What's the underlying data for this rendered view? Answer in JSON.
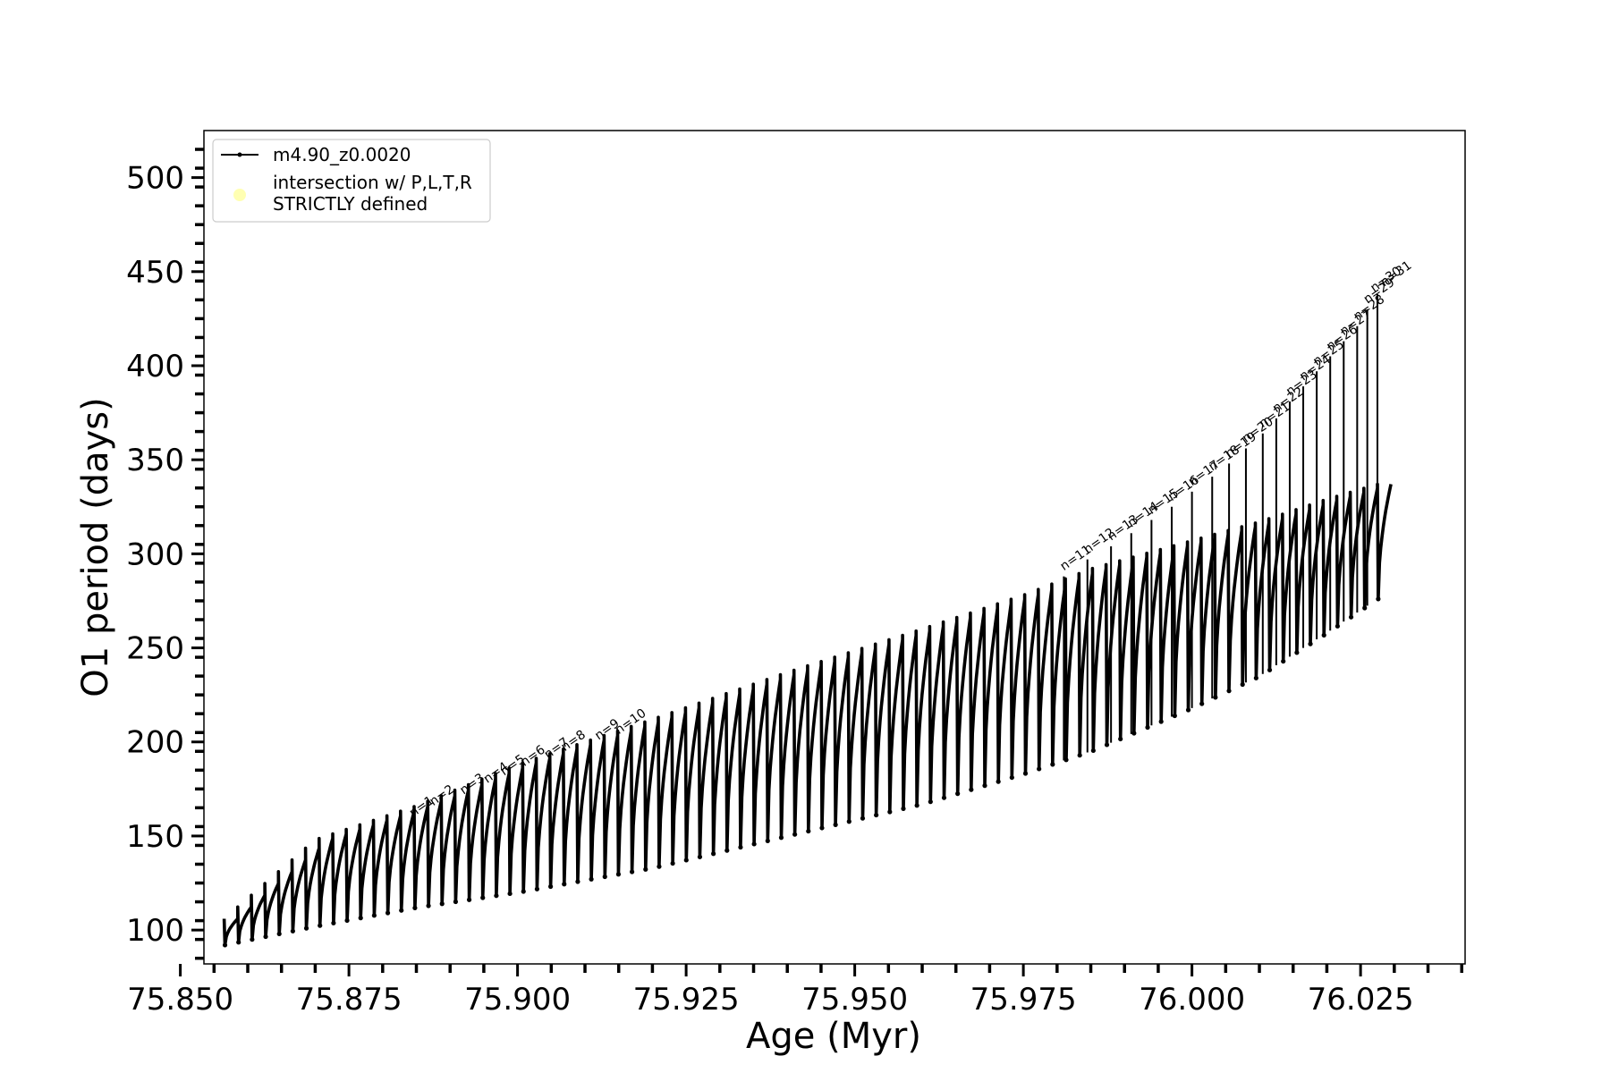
{
  "chart_data": {
    "type": "line",
    "title": "",
    "xlabel": "Age (Myr)",
    "ylabel": "O1 period (days)",
    "xlim": [
      75.8535,
      76.0405
    ],
    "ylim": [
      82,
      525
    ],
    "x_ticks": [
      75.85,
      75.875,
      75.9,
      75.925,
      75.95,
      75.975,
      76.0,
      76.025
    ],
    "x_tick_labels": [
      "75.850",
      "75.875",
      "75.900",
      "75.925",
      "75.950",
      "75.975",
      "76.000",
      "76.025"
    ],
    "y_ticks": [
      100,
      150,
      200,
      250,
      300,
      350,
      400,
      450,
      500
    ],
    "y_tick_labels": [
      "100",
      "150",
      "200",
      "250",
      "300",
      "350",
      "400",
      "450",
      "500"
    ],
    "grid": false,
    "legend": {
      "placement": "top-left",
      "entries": [
        {
          "label": "m4.90_z0.0020",
          "marker": "line-with-dots",
          "color": "#000000"
        },
        {
          "label_lines": [
            "intersection w/ P,L,T,R",
            "STRICTLY defined"
          ],
          "marker": "circle",
          "color": "#ffffb2"
        }
      ]
    },
    "series": [
      {
        "name": "m4.90_z0.0020",
        "color": "#000000",
        "pulses": {
          "count": 86,
          "age_start": 75.8565,
          "age_end": 76.0275,
          "envelope_x": [
            75.8565,
            75.87,
            75.885,
            75.9,
            75.92,
            75.94,
            75.96,
            75.975,
            75.985,
            76.0,
            76.01,
            76.02,
            76.0275
          ],
          "envelope_max": [
            106,
            148,
            166,
            188,
            212,
            237,
            260,
            278,
            292,
            307,
            317,
            329,
            337
          ],
          "envelope_min": [
            92,
            102,
            112,
            120,
            133,
            150,
            167,
            183,
            195,
            218,
            235,
            258,
            276
          ],
          "spike_max": [
            [
              75.981,
              288
            ],
            [
              75.9845,
              297
            ],
            [
              75.988,
              304
            ],
            [
              75.991,
              311
            ],
            [
              75.994,
              318
            ],
            [
              75.997,
              325
            ],
            [
              76.0,
              333
            ],
            [
              76.003,
              341
            ],
            [
              76.0055,
              348
            ],
            [
              76.008,
              356
            ],
            [
              76.0105,
              364
            ],
            [
              76.0125,
              372
            ],
            [
              76.0145,
              381
            ],
            [
              76.0165,
              389
            ],
            [
              76.0185,
              397
            ],
            [
              76.0205,
              405
            ],
            [
              76.0225,
              413
            ],
            [
              76.0245,
              421
            ],
            [
              76.026,
              430
            ],
            [
              76.0275,
              438
            ]
          ]
        }
      },
      {
        "name": "intersection w/ P,L,T,R STRICTLY defined",
        "color": "#ffffb2",
        "points": []
      }
    ],
    "annotations": [
      {
        "text": "n=1",
        "x": 75.8845,
        "y": 158
      },
      {
        "text": "n=2",
        "x": 75.8875,
        "y": 164
      },
      {
        "text": "n=3",
        "x": 75.892,
        "y": 170
      },
      {
        "text": "n=4",
        "x": 75.8955,
        "y": 176
      },
      {
        "text": "n=5",
        "x": 75.898,
        "y": 180
      },
      {
        "text": "n=6",
        "x": 75.901,
        "y": 185
      },
      {
        "text": "n=7",
        "x": 75.9045,
        "y": 189
      },
      {
        "text": "n=8",
        "x": 75.907,
        "y": 193
      },
      {
        "text": "n=9",
        "x": 75.912,
        "y": 199
      },
      {
        "text": "n=10",
        "x": 75.915,
        "y": 202
      },
      {
        "text": "n=11",
        "x": 75.981,
        "y": 289
      },
      {
        "text": "n=12",
        "x": 75.9845,
        "y": 298
      },
      {
        "text": "n=13",
        "x": 75.988,
        "y": 305
      },
      {
        "text": "n=14",
        "x": 75.991,
        "y": 312
      },
      {
        "text": "n=15",
        "x": 75.994,
        "y": 319
      },
      {
        "text": "n=16",
        "x": 75.997,
        "y": 326
      },
      {
        "text": "n=17",
        "x": 76.0,
        "y": 334
      },
      {
        "text": "n=18",
        "x": 76.003,
        "y": 342
      },
      {
        "text": "n=19",
        "x": 76.0055,
        "y": 349
      },
      {
        "text": "n=20",
        "x": 76.008,
        "y": 357
      },
      {
        "text": "n=21",
        "x": 76.0105,
        "y": 365
      },
      {
        "text": "n=22",
        "x": 76.0125,
        "y": 373
      },
      {
        "text": "n=23",
        "x": 76.0145,
        "y": 382
      },
      {
        "text": "n=24",
        "x": 76.0165,
        "y": 390
      },
      {
        "text": "n=25",
        "x": 76.0185,
        "y": 398
      },
      {
        "text": "n=26",
        "x": 76.0205,
        "y": 406
      },
      {
        "text": "n=27",
        "x": 76.0225,
        "y": 414
      },
      {
        "text": "n=28",
        "x": 76.0245,
        "y": 422
      },
      {
        "text": "n=29",
        "x": 76.026,
        "y": 431
      },
      {
        "text": "n=30",
        "x": 76.027,
        "y": 437
      },
      {
        "text": "n=31",
        "x": 76.0285,
        "y": 440
      }
    ]
  }
}
